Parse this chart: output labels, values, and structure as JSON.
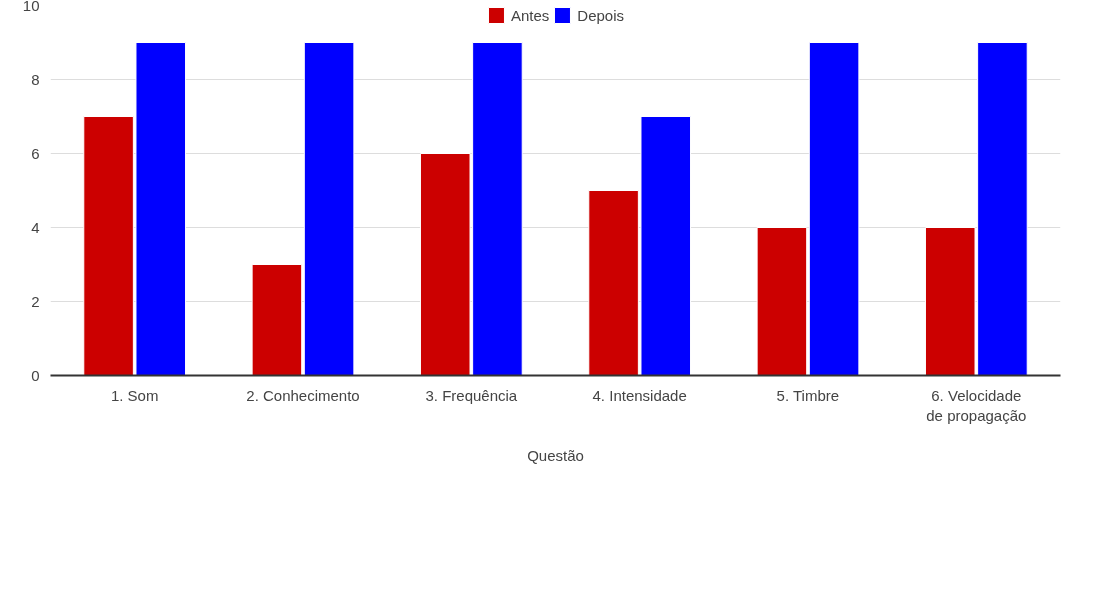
{
  "chart_data": {
    "type": "bar",
    "xlabel": "Questão",
    "categories": [
      "1. Som",
      "2. Conhecimento",
      "3. Frequência",
      "4. Intensidade",
      "5. Timbre",
      "6. Velocidade de propagação"
    ],
    "series": [
      {
        "name": "Antes",
        "color": "#cc0000",
        "values": [
          7,
          3,
          6,
          5,
          4,
          4
        ]
      },
      {
        "name": "Depois",
        "color": "#0000ff",
        "values": [
          9,
          9,
          9,
          7,
          9,
          9
        ]
      }
    ],
    "ylim": [
      0,
      10
    ],
    "yticks": [
      0,
      2,
      4,
      6,
      8,
      10
    ],
    "grid": "y",
    "legend": "top"
  }
}
